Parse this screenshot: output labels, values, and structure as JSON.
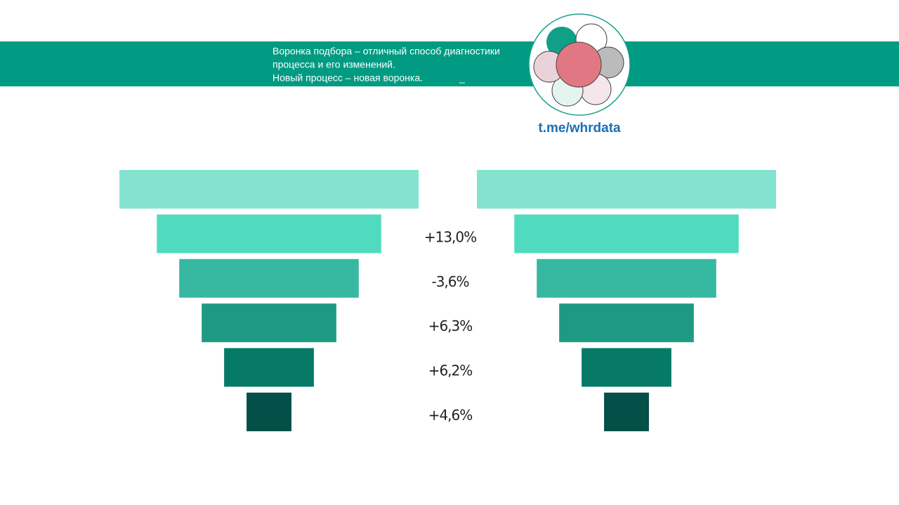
{
  "header": {
    "lines": [
      "Воронка подбора – отличный способ диагностики",
      "процесса и его изменений.",
      "Новый процесс – новая воронка."
    ],
    "mark": "_",
    "link": "t.me/whrdata"
  },
  "chart_data": {
    "type": "funnel",
    "xlim": [
      0,
      100
    ],
    "categories": [
      null,
      null,
      null,
      null,
      null,
      null
    ],
    "series": [
      {
        "color": [
          "#84e3cf",
          "#50dbbf",
          "#37b9a1",
          "#1e9a82",
          "#067a66",
          "#044f47"
        ],
        "values": [
          100,
          75,
          60,
          45,
          30,
          15
        ]
      },
      {
        "color": [
          "#84e3cf",
          "#50dbbf",
          "#37b9a1",
          "#1e9a82",
          "#067a66",
          "#044f47"
        ],
        "values": [
          100,
          75,
          60,
          45,
          30,
          15
        ]
      }
    ],
    "changes": {
      "values": [
        13.0,
        -3.6,
        6.3,
        6.2,
        4.6
      ],
      "value_labels": [
        "+13,0%",
        "-3,6%",
        "+6,3%",
        "+6,2%",
        "+4,6%"
      ]
    }
  }
}
